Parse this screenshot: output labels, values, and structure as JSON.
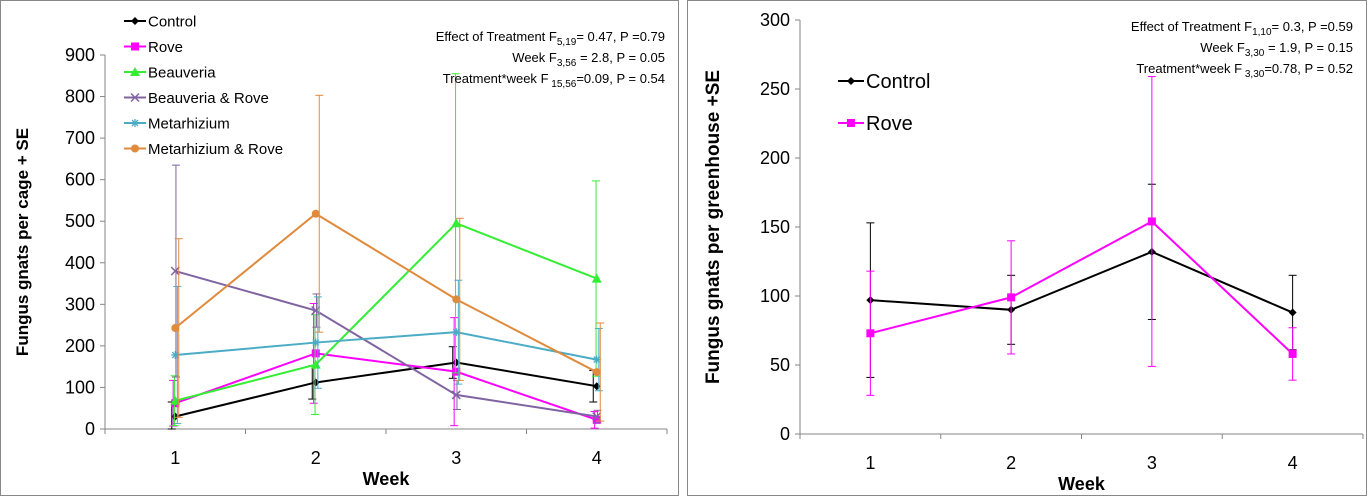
{
  "chart_data": [
    {
      "type": "line",
      "title": "",
      "xlabel": "Week",
      "ylabel": "Fungus gnats per cage + SE",
      "categories": [
        "1",
        "2",
        "3",
        "4"
      ],
      "ylim": [
        0,
        900
      ],
      "yticks": [
        0,
        100,
        200,
        300,
        400,
        500,
        600,
        700,
        800,
        900
      ],
      "grid": false,
      "legend_position": "top-left",
      "stats": [
        {
          "label": "Effect of Treatment",
          "sym": "F",
          "sub": "5,19",
          "rest": "= 0.47, P =0.79"
        },
        {
          "label": "Week",
          "sym": "F",
          "sub": "3,56",
          "rest": " = 2.8, P = 0.05"
        },
        {
          "label": "Treatment*week",
          "sym": "F",
          "sub": " 15,56",
          "rest": "=0.09, P = 0.54"
        }
      ],
      "series": [
        {
          "name": "Control",
          "color": "#000000",
          "marker": "diamond",
          "values": [
            30,
            112,
            160,
            103
          ],
          "err": [
            35,
            40,
            38,
            38
          ]
        },
        {
          "name": "Rove",
          "color": "#ff00ff",
          "marker": "square",
          "values": [
            62,
            182,
            138,
            22
          ],
          "err": [
            55,
            120,
            130,
            20
          ]
        },
        {
          "name": "Beauveria",
          "color": "#33ee33",
          "marker": "triangle",
          "values": [
            68,
            155,
            495,
            362
          ],
          "err": [
            60,
            120,
            360,
            235
          ]
        },
        {
          "name": "Beauveria & Rove",
          "color": "#8064a2",
          "marker": "x",
          "values": [
            380,
            285,
            82,
            30
          ],
          "err": [
            255,
            40,
            35,
            15
          ]
        },
        {
          "name": "Metarhizium",
          "color": "#4bacc6",
          "marker": "star",
          "values": [
            178,
            208,
            233,
            167
          ],
          "err": [
            165,
            110,
            125,
            75
          ]
        },
        {
          "name": "Metarhizium & Rove",
          "color": "#e08a3c",
          "marker": "circle",
          "values": [
            243,
            518,
            312,
            137
          ],
          "err": [
            215,
            285,
            195,
            118
          ]
        }
      ]
    },
    {
      "type": "line",
      "title": "",
      "xlabel": "Week",
      "ylabel": "Fungus gnats per greenhouse +SE",
      "categories": [
        "1",
        "2",
        "3",
        "4"
      ],
      "ylim": [
        0,
        300
      ],
      "yticks": [
        0,
        50,
        100,
        150,
        200,
        250,
        300
      ],
      "grid": false,
      "legend_position": "top-left",
      "stats": [
        {
          "label": "Effect of Treatment",
          "sym": "F",
          "sub": "1,10",
          "rest": "= 0.3, P =0.59"
        },
        {
          "label": "Week",
          "sym": "F",
          "sub": "3,30",
          "rest": " = 1.9, P = 0.15"
        },
        {
          "label": "Treatment*week",
          "sym": "F",
          "sub": " 3,30",
          "rest": "=0.78, P = 0.52"
        }
      ],
      "series": [
        {
          "name": "Control",
          "color": "#000000",
          "marker": "diamond",
          "values": [
            97,
            90,
            132,
            88
          ],
          "err": [
            56,
            25,
            49,
            27
          ]
        },
        {
          "name": "Rove",
          "color": "#ff00ff",
          "marker": "square",
          "values": [
            73,
            99,
            154,
            58
          ],
          "err": [
            45,
            41,
            105,
            19
          ]
        }
      ]
    }
  ]
}
